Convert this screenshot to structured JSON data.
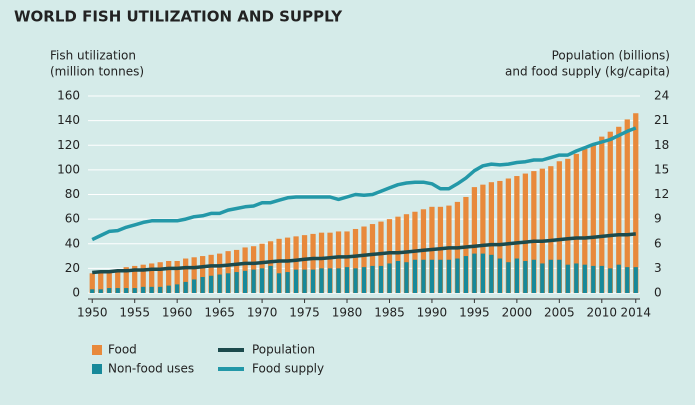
{
  "chart_data": {
    "type": "bar",
    "title": "WORLD FISH UTILIZATION AND SUPPLY",
    "y_label": [
      "Fish utilization",
      "(million tonnes)"
    ],
    "y2_label": [
      "Population (billions)",
      "and food supply (kg/capita)"
    ],
    "x": [
      1950,
      1951,
      1952,
      1953,
      1954,
      1955,
      1956,
      1957,
      1958,
      1959,
      1960,
      1961,
      1962,
      1963,
      1964,
      1965,
      1966,
      1967,
      1968,
      1969,
      1970,
      1971,
      1972,
      1973,
      1974,
      1975,
      1976,
      1977,
      1978,
      1979,
      1980,
      1981,
      1982,
      1983,
      1984,
      1985,
      1986,
      1987,
      1988,
      1989,
      1990,
      1991,
      1992,
      1993,
      1994,
      1995,
      1996,
      1997,
      1998,
      1999,
      2000,
      2001,
      2002,
      2003,
      2004,
      2005,
      2006,
      2007,
      2008,
      2009,
      2010,
      2011,
      2012,
      2013,
      2014
    ],
    "xlim": [
      1949.5,
      2014.5
    ],
    "xticks": [
      1950,
      1955,
      1960,
      1965,
      1970,
      1975,
      1980,
      1985,
      1990,
      1995,
      2000,
      2005,
      2010,
      2014
    ],
    "ylim": [
      0,
      160
    ],
    "yticks": [
      0,
      20,
      40,
      60,
      80,
      100,
      120,
      140,
      160
    ],
    "y2lim": [
      0,
      24
    ],
    "y2ticks": [
      0,
      3,
      6,
      9,
      12,
      15,
      18,
      21,
      24
    ],
    "grid": true,
    "series": [
      {
        "name": "Food",
        "type": "bar",
        "color": "#e8893b",
        "values": [
          16,
          17,
          18,
          19,
          21,
          22,
          23,
          24,
          25,
          26,
          26,
          28,
          29,
          30,
          31,
          32,
          34,
          35,
          37,
          38,
          40,
          42,
          44,
          45,
          46,
          47,
          48,
          49,
          49,
          50,
          50,
          52,
          54,
          56,
          58,
          60,
          62,
          64,
          66,
          68,
          70,
          70,
          71,
          74,
          78,
          86,
          88,
          90,
          91,
          93,
          95,
          97,
          99,
          101,
          103,
          107,
          109,
          113,
          117,
          121,
          127,
          131,
          135,
          141,
          146
        ]
      },
      {
        "name": "Non-food uses",
        "type": "bar",
        "color": "#17899a",
        "values": [
          3,
          3,
          4,
          4,
          4,
          4,
          5,
          5,
          5,
          6,
          7,
          9,
          11,
          13,
          14,
          15,
          16,
          17,
          18,
          19,
          20,
          22,
          16,
          17,
          19,
          19,
          19,
          20,
          20,
          20,
          21,
          20,
          21,
          22,
          22,
          24,
          26,
          25,
          27,
          27,
          27,
          27,
          27,
          28,
          30,
          32,
          32,
          31,
          28,
          25,
          28,
          26,
          27,
          24,
          27,
          27,
          23,
          24,
          23,
          22,
          22,
          20,
          23,
          21,
          21
        ]
      },
      {
        "name": "Population",
        "type": "line",
        "axis": "y2",
        "color": "#1c4a4c",
        "values": [
          2.5,
          2.6,
          2.6,
          2.7,
          2.7,
          2.8,
          2.8,
          2.9,
          2.9,
          3.0,
          3.0,
          3.1,
          3.1,
          3.2,
          3.3,
          3.3,
          3.4,
          3.5,
          3.6,
          3.6,
          3.7,
          3.8,
          3.9,
          3.9,
          4.0,
          4.1,
          4.2,
          4.2,
          4.3,
          4.4,
          4.4,
          4.5,
          4.6,
          4.7,
          4.8,
          4.9,
          4.9,
          5.0,
          5.1,
          5.2,
          5.3,
          5.4,
          5.5,
          5.5,
          5.6,
          5.7,
          5.8,
          5.9,
          5.9,
          6.0,
          6.1,
          6.2,
          6.3,
          6.3,
          6.4,
          6.5,
          6.6,
          6.7,
          6.7,
          6.8,
          6.9,
          7.0,
          7.1,
          7.1,
          7.2
        ]
      },
      {
        "name": "Food supply",
        "type": "line",
        "axis": "y2",
        "color": "#2398a8",
        "values": [
          6.5,
          7.0,
          7.5,
          7.6,
          8.0,
          8.3,
          8.6,
          8.8,
          8.8,
          8.8,
          8.8,
          9.0,
          9.3,
          9.4,
          9.7,
          9.7,
          10.1,
          10.3,
          10.5,
          10.6,
          11.0,
          11.0,
          11.3,
          11.6,
          11.7,
          11.7,
          11.7,
          11.7,
          11.7,
          11.4,
          11.7,
          12.0,
          11.9,
          12.0,
          12.4,
          12.8,
          13.2,
          13.4,
          13.5,
          13.5,
          13.3,
          12.7,
          12.7,
          13.3,
          14.0,
          14.9,
          15.5,
          15.7,
          15.6,
          15.7,
          15.9,
          16.0,
          16.2,
          16.2,
          16.5,
          16.8,
          16.8,
          17.3,
          17.7,
          18.1,
          18.4,
          18.7,
          19.2,
          19.7,
          20.1
        ]
      }
    ]
  }
}
